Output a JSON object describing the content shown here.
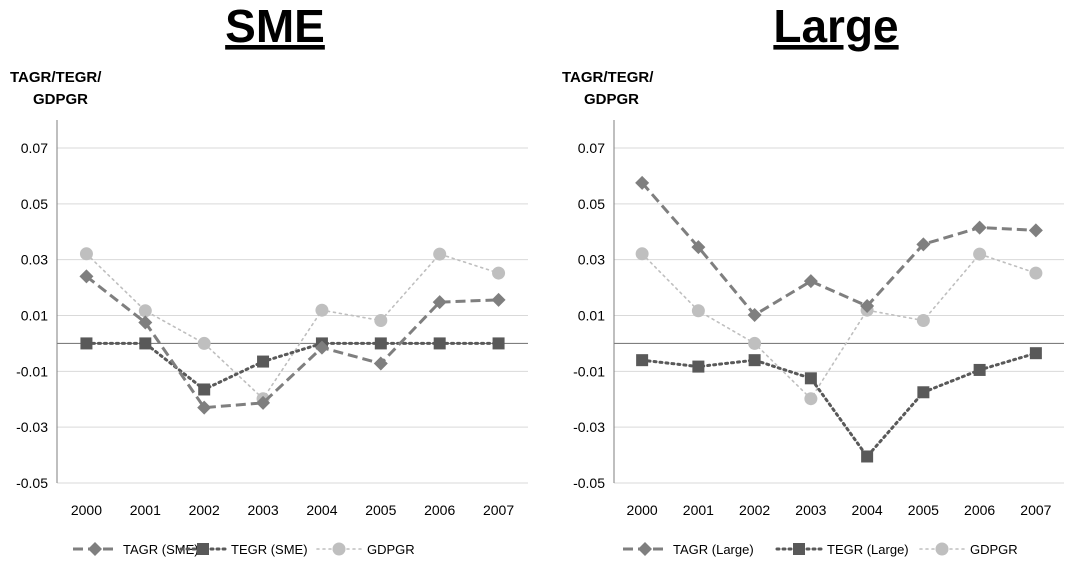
{
  "chart_data": [
    {
      "type": "line",
      "title": "SME",
      "ylabel": [
        "TAGR/TEGR/",
        "GDPGR"
      ],
      "ylim": [
        -0.05,
        0.07
      ],
      "yticks": [
        "0.07",
        "0.05",
        "0.03",
        "0.01",
        "-0.01",
        "-0.03",
        "-0.05"
      ],
      "yticks_values": [
        0.07,
        0.05,
        0.03,
        0.01,
        -0.01,
        -0.03,
        -0.05
      ],
      "x": [
        "2000",
        "2001",
        "2002",
        "2003",
        "2004",
        "2005",
        "2006",
        "2007"
      ],
      "grid": true,
      "legend_position": "bottom",
      "series": [
        {
          "name": "TAGR (SME)",
          "values": [
            0.024,
            0.0075,
            -0.023,
            -0.0213,
            -0.0015,
            -0.0072,
            0.0148,
            0.0156
          ],
          "color": "#7f7f7f",
          "style": "dashed",
          "marker": "diamond"
        },
        {
          "name": "TEGR (SME)",
          "values": [
            0.0,
            0.0,
            -0.0165,
            -0.0065,
            0.0,
            0.0,
            0.0,
            0.0
          ],
          "color": "#595959",
          "style": "dotted",
          "marker": "square"
        },
        {
          "name": "GDPGR",
          "values": [
            0.0321,
            0.0117,
            0.0,
            -0.0198,
            0.0119,
            0.0082,
            0.032,
            0.0252
          ],
          "color": "#bfbfbf",
          "style": "dotted",
          "marker": "circle"
        }
      ]
    },
    {
      "type": "line",
      "title": "Large",
      "ylabel": [
        "TAGR/TEGR/",
        "GDPGR"
      ],
      "ylim": [
        -0.05,
        0.07
      ],
      "yticks": [
        "0.07",
        "0.05",
        "0.03",
        "0.01",
        "-0.01",
        "-0.03",
        "-0.05"
      ],
      "yticks_values": [
        0.07,
        0.05,
        0.03,
        0.01,
        -0.01,
        -0.03,
        -0.05
      ],
      "x": [
        "2000",
        "2001",
        "2002",
        "2003",
        "2004",
        "2005",
        "2006",
        "2007"
      ],
      "grid": true,
      "legend_position": "bottom",
      "series": [
        {
          "name": "TAGR (Large)",
          "values": [
            0.0575,
            0.0345,
            0.0102,
            0.0223,
            0.0134,
            0.0355,
            0.0415,
            0.0405
          ],
          "color": "#7f7f7f",
          "style": "dashed",
          "marker": "diamond"
        },
        {
          "name": "TEGR (Large)",
          "values": [
            -0.006,
            -0.0083,
            -0.006,
            -0.0125,
            -0.0405,
            -0.0175,
            -0.0095,
            -0.0035
          ],
          "color": "#595959",
          "style": "dotted",
          "marker": "square"
        },
        {
          "name": "GDPGR",
          "values": [
            0.0321,
            0.0117,
            0.0,
            -0.0198,
            0.0119,
            0.0082,
            0.032,
            0.0252
          ],
          "color": "#bfbfbf",
          "style": "dotted",
          "marker": "circle"
        }
      ]
    }
  ]
}
